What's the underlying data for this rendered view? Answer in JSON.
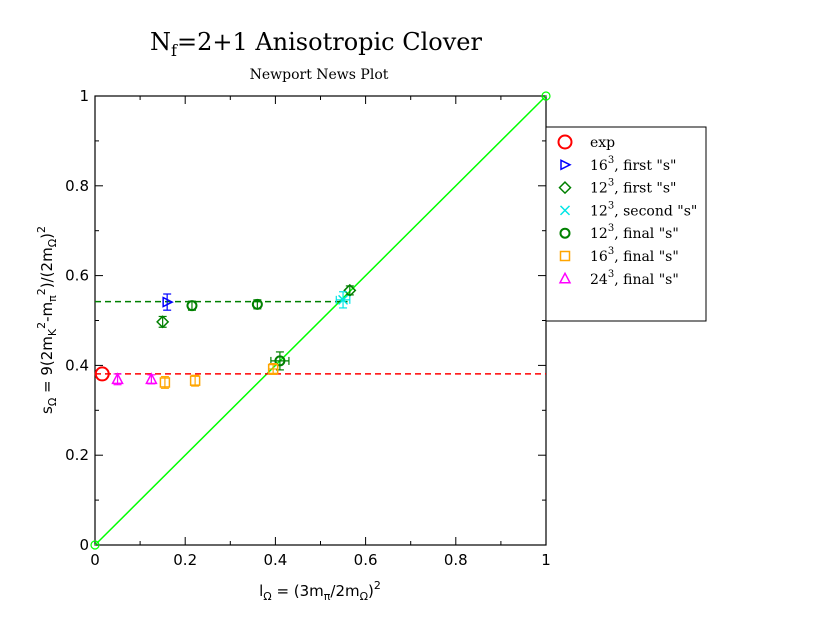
{
  "chart_data": {
    "type": "scatter",
    "title": {
      "prefix": "N",
      "sub": "f",
      "suffix": "=2+1 Anisotropic Clover"
    },
    "subtitle": "Newport News Plot",
    "xlabel": {
      "parts": [
        {
          "t": "l",
          "s": "n"
        },
        {
          "t": "Ω",
          "s": "sub"
        },
        {
          "t": " = (3m",
          "s": "n"
        },
        {
          "t": "π",
          "s": "sub"
        },
        {
          "t": "/2m",
          "s": "n"
        },
        {
          "t": "Ω",
          "s": "sub"
        },
        {
          "t": ")",
          "s": "n"
        },
        {
          "t": "2",
          "s": "sup"
        }
      ]
    },
    "ylabel": {
      "parts": [
        {
          "t": "s",
          "s": "n"
        },
        {
          "t": "Ω",
          "s": "sub"
        },
        {
          "t": " = 9(2m",
          "s": "n"
        },
        {
          "t": "K",
          "s": "sub"
        },
        {
          "t": "2",
          "s": "sup"
        },
        {
          "t": "-m",
          "s": "n"
        },
        {
          "t": "π",
          "s": "sub"
        },
        {
          "t": "2",
          "s": "sup"
        },
        {
          "t": ")/(2m",
          "s": "n"
        },
        {
          "t": "Ω",
          "s": "sub"
        },
        {
          "t": ")",
          "s": "n"
        },
        {
          "t": "2",
          "s": "sup"
        }
      ]
    },
    "xlim": [
      0,
      1
    ],
    "ylim": [
      0,
      1
    ],
    "xticks": [
      "0",
      "0.2",
      "0.4",
      "0.6",
      "0.8",
      "1"
    ],
    "yticks": [
      "0",
      "0.2",
      "0.4",
      "0.6",
      "0.8",
      "1"
    ],
    "xtick_values": [
      0,
      0.2,
      0.4,
      0.6,
      0.8,
      1
    ],
    "ytick_values": [
      0,
      0.2,
      0.4,
      0.6,
      0.8,
      1
    ],
    "legend_position": "right, outside plot",
    "lines": [
      {
        "name": "diagonal",
        "x": [
          0,
          1
        ],
        "y": [
          0,
          1
        ],
        "color": "#00ff00",
        "style": "solid",
        "end_markers": true
      },
      {
        "name": "dashed-green",
        "x": [
          0,
          0.56
        ],
        "y": [
          0.542,
          0.542
        ],
        "color": "#008000",
        "style": "dashed"
      },
      {
        "name": "dashed-red",
        "x": [
          0,
          1
        ],
        "y": [
          0.381,
          0.381
        ],
        "color": "#ff0000",
        "style": "dashed"
      }
    ],
    "series": [
      {
        "name": "exp",
        "base": "exp",
        "sup": "",
        "rest": "",
        "marker": "circle-large",
        "color": "#ff0000",
        "points": [
          {
            "x": 0.016,
            "y": 0.381
          }
        ]
      },
      {
        "name": "16^3, first \"s\"",
        "base": "16",
        "sup": "3",
        "rest": ", first \"s\"",
        "marker": "triangle-right",
        "color": "#0000ff",
        "points": [
          {
            "x": 0.16,
            "y": 0.541,
            "yerr": 0.018
          }
        ]
      },
      {
        "name": "12^3, first \"s\"",
        "base": "12",
        "sup": "3",
        "rest": ", first \"s\"",
        "marker": "diamond",
        "color": "#008000",
        "points": [
          {
            "x": 0.15,
            "y": 0.497,
            "yerr": 0.012
          },
          {
            "x": 0.565,
            "y": 0.567,
            "yerr": 0.01
          }
        ]
      },
      {
        "name": "12^3, second \"s\"",
        "base": "12",
        "sup": "3",
        "rest": ", second \"s\"",
        "marker": "cross",
        "color": "#00e5e5",
        "points": [
          {
            "x": 0.55,
            "y": 0.546,
            "yerr": 0.018,
            "xerr": 0.015
          }
        ]
      },
      {
        "name": "12^3, final \"s\"",
        "base": "12",
        "sup": "3",
        "rest": ", final \"s\"",
        "marker": "circle",
        "color": "#008000",
        "points": [
          {
            "x": 0.215,
            "y": 0.533,
            "yerr": 0.01
          },
          {
            "x": 0.36,
            "y": 0.536,
            "yerr": 0.01
          },
          {
            "x": 0.41,
            "y": 0.41,
            "yerr": 0.02,
            "xerr": 0.02
          }
        ]
      },
      {
        "name": "16^3, final \"s\"",
        "base": "16",
        "sup": "3",
        "rest": ", final \"s\"",
        "marker": "square",
        "color": "#ffa500",
        "points": [
          {
            "x": 0.155,
            "y": 0.362,
            "yerr": 0.013
          },
          {
            "x": 0.222,
            "y": 0.366,
            "yerr": 0.012
          },
          {
            "x": 0.395,
            "y": 0.392,
            "yerr": 0.012,
            "xerr": 0.01
          }
        ]
      },
      {
        "name": "24^3, final \"s\"",
        "base": "24",
        "sup": "3",
        "rest": ", final \"s\"",
        "marker": "triangle-up",
        "color": "#ff00ff",
        "points": [
          {
            "x": 0.05,
            "y": 0.369,
            "yerr": 0.012
          },
          {
            "x": 0.125,
            "y": 0.369,
            "yerr": 0.01
          }
        ]
      }
    ]
  }
}
